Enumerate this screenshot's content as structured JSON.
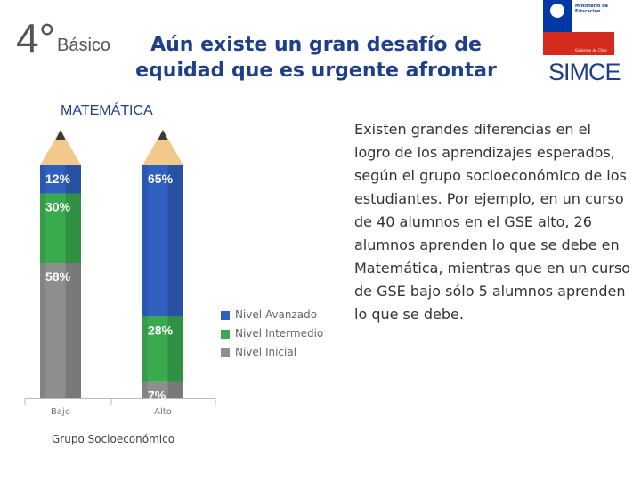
{
  "header": {
    "grade_number": "4°",
    "grade_word": "Básico",
    "headline": "Aún existe un gran desafío de equidad que es urgente afrontar"
  },
  "logo": {
    "ministry": "Ministerio de Educación",
    "government": "Gobierno de Chile",
    "brand": "SIMCE"
  },
  "subject": "MATEMÁTICA",
  "body_text": "Existen grandes diferencias en el logro de los aprendizajes esperados, según el grupo socioeconómico de los estudiantes. Por ejemplo, en un curso de 40 alumnos en el GSE alto, 26 alumnos aprenden lo que se debe en Matemática, mientras que en un curso de GSE bajo sólo 5 alumnos aprenden lo que se debe.",
  "colors": {
    "avanzado": "#2f5fbf",
    "intermedio": "#3aaa4f",
    "inicial": "#8e8e8e",
    "title": "#1f3f88"
  },
  "chart_data": {
    "type": "bar",
    "stacked": true,
    "style": "pencil",
    "categories": [
      "Bajo",
      "Alto"
    ],
    "series": [
      {
        "name": "Nivel Inicial",
        "values": [
          58,
          7
        ],
        "labels": [
          "58%",
          "7%"
        ]
      },
      {
        "name": "Nivel Intermedio",
        "values": [
          30,
          28
        ],
        "labels": [
          "30%",
          "28%"
        ]
      },
      {
        "name": "Nivel Avanzado",
        "values": [
          12,
          65
        ],
        "labels": [
          "12%",
          "65%"
        ]
      }
    ],
    "xlabel": "Grupo Socioeconómico",
    "ylim": [
      0,
      100
    ],
    "legend_position": "right",
    "legend_order": [
      "Nivel Avanzado",
      "Nivel Intermedio",
      "Nivel Inicial"
    ]
  }
}
